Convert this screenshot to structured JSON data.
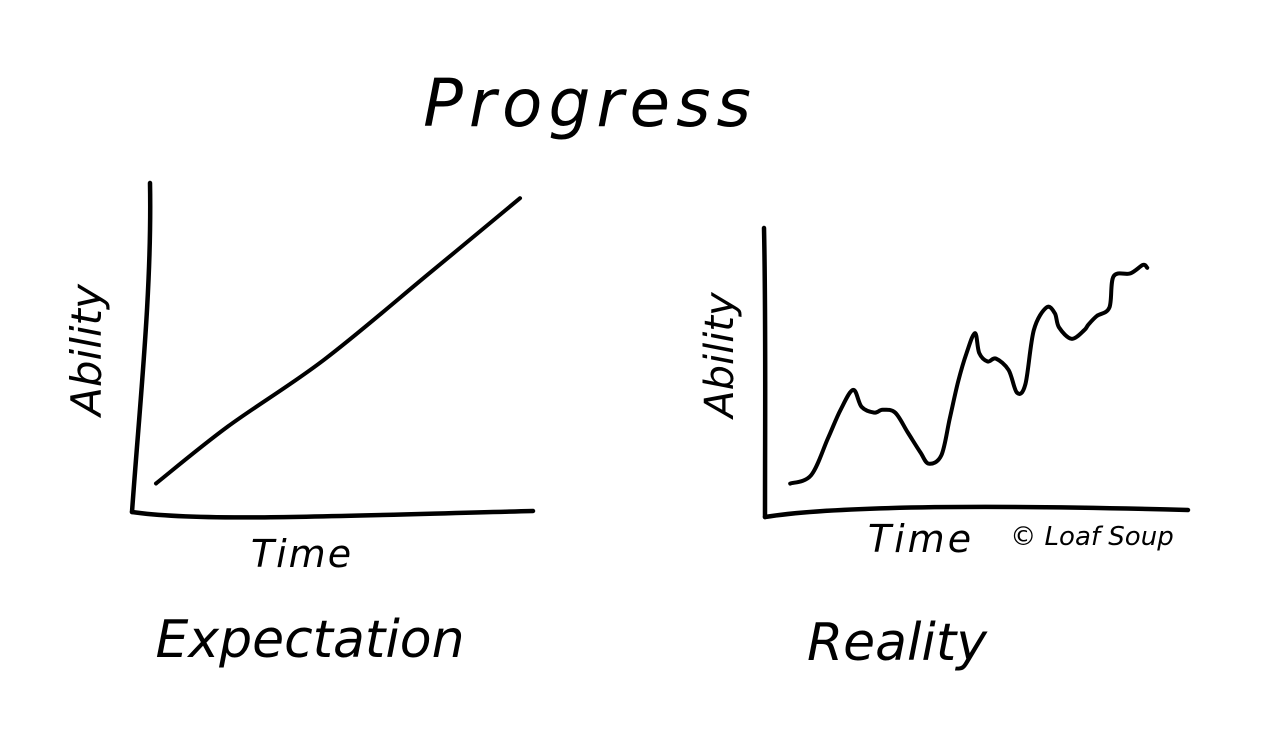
{
  "title": "Progress",
  "copyright": "© Loaf Soup",
  "colors": {
    "ink": "#000000",
    "watermark": "#8a8a8a",
    "background": "#ffffff"
  },
  "chart_data": [
    {
      "type": "line",
      "title": "Expectation",
      "xlabel": "Time",
      "ylabel": "Ability",
      "xlim": [
        0,
        10
      ],
      "ylim": [
        0,
        10
      ],
      "grid": false,
      "series": [
        {
          "x": [
            0.6,
            2.4,
            4.8,
            7.5,
            9.7
          ],
          "values": [
            0.9,
            2.7,
            4.8,
            7.6,
            9.9
          ]
        }
      ]
    },
    {
      "type": "line",
      "title": "Reality",
      "xlabel": "Time",
      "ylabel": "Ability",
      "xlim": [
        0,
        10
      ],
      "ylim": [
        0,
        10
      ],
      "grid": false,
      "series": [
        {
          "x": [
            0.6,
            1.1,
            1.5,
            1.8,
            2.1,
            2.3,
            2.6,
            2.8,
            3.1,
            3.4,
            3.7,
            3.9,
            4.2,
            4.4,
            4.6,
            4.8,
            5.0,
            5.1,
            5.3,
            5.5,
            5.8,
            6.0,
            6.2,
            6.4,
            6.7,
            6.9,
            7.0,
            7.3,
            7.6,
            7.7,
            7.9,
            8.2,
            8.3,
            8.7,
            9.0,
            9.1
          ],
          "values": [
            1.0,
            1.3,
            2.6,
            3.6,
            4.3,
            3.7,
            3.5,
            3.6,
            3.5,
            2.8,
            2.1,
            1.7,
            2.0,
            3.3,
            4.6,
            5.6,
            6.3,
            5.6,
            5.3,
            5.4,
            5.0,
            4.2,
            4.5,
            6.4,
            7.2,
            7.0,
            6.5,
            6.1,
            6.4,
            6.6,
            6.9,
            7.2,
            8.3,
            8.4,
            8.7,
            8.6
          ]
        }
      ]
    }
  ]
}
